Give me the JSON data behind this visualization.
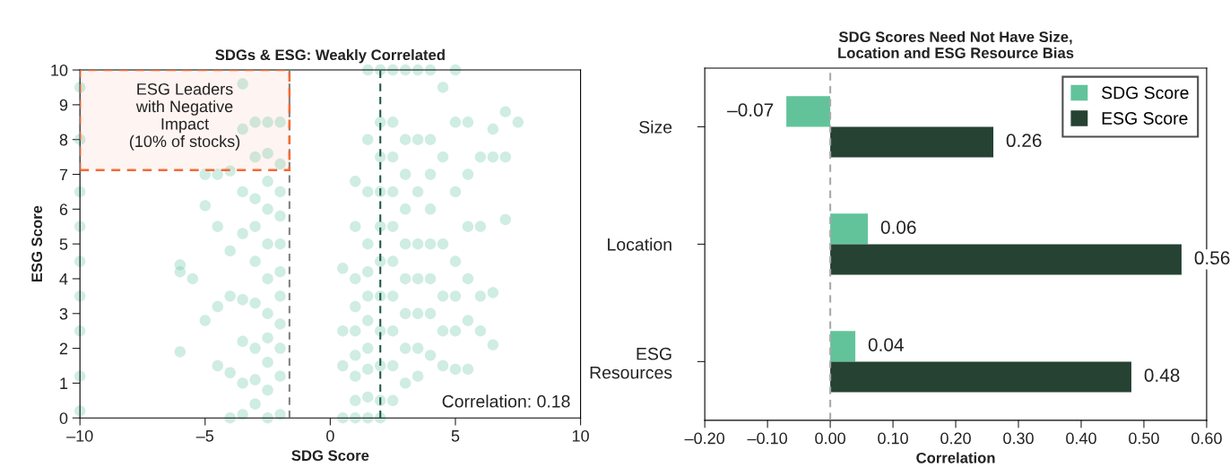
{
  "chart_data": [
    {
      "type": "scatter",
      "title": "SDGs & ESG: Weakly Correlated",
      "xlabel": "SDG Score",
      "ylabel": "ESG Score",
      "series": [
        {
          "color": "#5fc2a0",
          "x": [
            -10,
            -10,
            -10,
            -10,
            -10,
            -10,
            -10,
            -10,
            -10,
            -6,
            -6,
            -6,
            -5.5,
            -5,
            -5,
            -5,
            -4.5,
            -4.5,
            -4.5,
            -4.5,
            -4,
            -4,
            -4,
            -4,
            -4,
            -3.5,
            -3.5,
            -3.5,
            -3.5,
            -3.5,
            -3.5,
            -3.5,
            -3.5,
            -3,
            -3,
            -3,
            -3,
            -3,
            -3,
            -3,
            -3,
            -3,
            -2.5,
            -2.5,
            -2.5,
            -2.5,
            -2.5,
            -2.5,
            -2.5,
            -2.5,
            -2.5,
            -2.5,
            -2.5,
            -2,
            -2,
            -2,
            -2,
            -2,
            -2,
            -2,
            -2,
            -2,
            -2,
            -2,
            0.5,
            0.5,
            0.5,
            0.5,
            1,
            1,
            1,
            1,
            1,
            1,
            1,
            1,
            1,
            1.5,
            1.5,
            1.5,
            1.5,
            1.5,
            1.5,
            1.5,
            1.5,
            1.5,
            1.5,
            1.5,
            2,
            2,
            2,
            2,
            2,
            2,
            2,
            2,
            2,
            2,
            2,
            2.5,
            2.5,
            2.5,
            2.5,
            2.5,
            2.5,
            2.5,
            2.5,
            2.5,
            2.5,
            3,
            3,
            3,
            3,
            3,
            3,
            3,
            3,
            3,
            3.5,
            3.5,
            3.5,
            3.5,
            3.5,
            3.5,
            3.5,
            3.5,
            4,
            4,
            4,
            4,
            4,
            4,
            4,
            4,
            4.5,
            4.5,
            4.5,
            4.5,
            4.5,
            4.5,
            5,
            5,
            5,
            5,
            5,
            5,
            5,
            5.5,
            5.5,
            5.5,
            5.5,
            5.5,
            5.5,
            6,
            6,
            6,
            6,
            6.5,
            6.5,
            6.5,
            6.5,
            7,
            7,
            7,
            7.5
          ],
          "values": [
            0.2,
            1.2,
            2.5,
            3.5,
            4.5,
            5.5,
            6.5,
            8.0,
            9.5,
            1.9,
            4.2,
            4.4,
            4.0,
            2.8,
            6.1,
            7.0,
            1.5,
            3.2,
            5.5,
            7.0,
            0,
            1.3,
            3.5,
            4.8,
            7.1,
            0.1,
            1.0,
            2.2,
            3.4,
            5.3,
            6.5,
            8.3,
            9.6,
            0.4,
            1.1,
            2.0,
            3.3,
            4.5,
            5.5,
            6.3,
            7.5,
            8.5,
            0,
            0.8,
            1.6,
            2.3,
            3.0,
            4.0,
            5.0,
            6.0,
            6.8,
            7.6,
            8.5,
            0.1,
            1.2,
            2.0,
            2.7,
            3.5,
            4.2,
            5.0,
            5.8,
            6.5,
            7.3,
            8.5,
            0,
            1.5,
            2.5,
            4.3,
            0,
            0.5,
            1.2,
            1.8,
            2.5,
            3.2,
            4.0,
            5.5,
            6.8,
            0,
            0.6,
            1.4,
            2.0,
            2.8,
            3.5,
            4.2,
            5.0,
            6.5,
            8.0,
            10,
            0,
            0.5,
            1.5,
            2.5,
            3.5,
            4.5,
            5.5,
            6.5,
            7.5,
            8.5,
            10,
            0.5,
            1.5,
            2.5,
            3.5,
            4.5,
            5.5,
            6.5,
            7.5,
            8.5,
            10,
            1,
            2,
            3,
            4,
            5,
            6,
            7,
            8,
            10,
            1.2,
            2.0,
            3.0,
            4.0,
            5.0,
            6.5,
            8.0,
            10,
            1.8,
            3.0,
            4.0,
            5.0,
            6.0,
            7.0,
            8.0,
            10,
            1.5,
            2.5,
            3.5,
            5.0,
            7.5,
            9.5,
            1.4,
            2.5,
            3.5,
            4.5,
            6.5,
            8.5,
            10,
            1.4,
            2.8,
            4.0,
            5.5,
            7.0,
            8.5,
            2.5,
            3.5,
            5.5,
            7.5,
            2.1,
            3.6,
            7.5,
            8.3,
            5.7,
            7.5,
            8.8,
            8.5
          ]
        }
      ],
      "xlim": [
        -10,
        10
      ],
      "xticks": [
        {
          "value": -10,
          "label": "–10"
        },
        {
          "value": -5,
          "label": "–5"
        },
        0,
        5,
        10
      ],
      "ylim": [
        0,
        10
      ],
      "yticks": [
        0,
        1,
        2,
        3,
        4,
        5,
        6,
        7,
        8,
        9,
        10
      ],
      "ref_lines": [
        {
          "axis": "x",
          "value": -1.63,
          "color": "#808080",
          "line_style": "dashed"
        },
        {
          "axis": "x",
          "value": 2,
          "color": "#1e5a44",
          "line_style": "dashed"
        }
      ],
      "bands": [
        {
          "axis": "y",
          "from": 7.12,
          "to": 10,
          "color": "#f26a35",
          "label": "ESG Leaders\nwith Negative\nImpact\n(10% of stocks)"
        }
      ],
      "annotations": [
        "Correlation: 0.18"
      ],
      "marker": "circle",
      "grid": false,
      "legend": false
    },
    {
      "type": "bar",
      "orientation": "horizontal",
      "title": "SDG Scores Need Not Have Size,\nLocation and ESG Resource Bias",
      "xlabel": "Correlation",
      "categories": [
        "Size",
        "Location",
        "ESG\nResources"
      ],
      "series": [
        {
          "name": "SDG Score",
          "color": "#62c39b",
          "values": [
            -0.07,
            0.06,
            0.04
          ],
          "value_labels": [
            "–0.07",
            "0.06",
            "0.04"
          ]
        },
        {
          "name": "ESG Score",
          "color": "#254233",
          "values": [
            0.26,
            0.56,
            0.48
          ],
          "value_labels": [
            "0.26",
            "0.56",
            "0.48"
          ]
        }
      ],
      "xlim": [
        -0.2,
        0.6
      ],
      "xticks": [
        {
          "value": -0.2,
          "label": "–0.20"
        },
        {
          "value": -0.1,
          "label": "–0.10"
        },
        {
          "value": 0,
          "label": "0.00"
        },
        {
          "value": 0.1,
          "label": "0.10"
        },
        {
          "value": 0.2,
          "label": "0.20"
        },
        {
          "value": 0.3,
          "label": "0.30"
        },
        {
          "value": 0.4,
          "label": "0.40"
        },
        {
          "value": 0.5,
          "label": "0.50"
        },
        {
          "value": 0.6,
          "label": "0.60"
        }
      ],
      "ref_lines": [
        {
          "axis": "x",
          "value": 0,
          "color": "#aaaaaa",
          "line_style": "dashed"
        }
      ],
      "grid": false,
      "legend": "top right"
    }
  ]
}
